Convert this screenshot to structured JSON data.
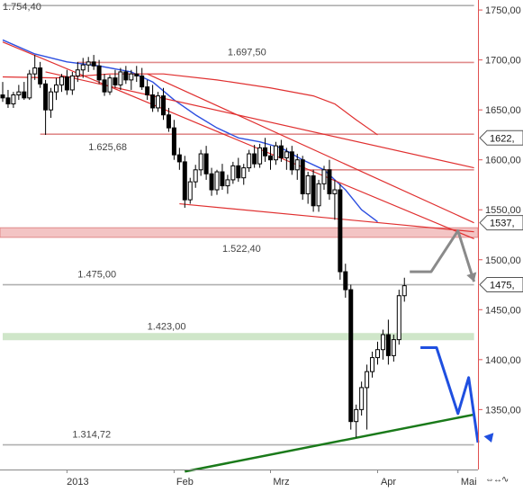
{
  "chart_data": {
    "type": "candlestick",
    "ylim": [
      1290,
      1760
    ],
    "y_ticks": [
      {
        "v": 1750,
        "label": "1750,00"
      },
      {
        "v": 1700,
        "label": "1700,00"
      },
      {
        "v": 1650,
        "label": "1650,00"
      },
      {
        "v": 1600,
        "label": "1600,00"
      },
      {
        "v": 1550,
        "label": "1550,00"
      },
      {
        "v": 1500,
        "label": "1500,00"
      },
      {
        "v": 1450,
        "label": "1450,00"
      },
      {
        "v": 1400,
        "label": "1400,00"
      },
      {
        "v": 1350,
        "label": "1350,00"
      }
    ],
    "x_labels": [
      {
        "i": 12,
        "label": "2013"
      },
      {
        "i": 32,
        "label": "Feb"
      },
      {
        "i": 50,
        "label": "Mrz"
      },
      {
        "i": 70,
        "label": "Apr"
      },
      {
        "i": 85,
        "label": "Mai"
      }
    ],
    "price_badges": [
      {
        "v": 1622,
        "label": "1622,"
      },
      {
        "v": 1537,
        "label": "1537,"
      },
      {
        "v": 1475,
        "label": "1475,"
      }
    ],
    "levels": [
      {
        "v": 1754.4,
        "label": "1.754,40",
        "color": "#b0b0b0",
        "from": 0,
        "to": 88,
        "label_i": 0
      },
      {
        "v": 1697.5,
        "label": "1.697,50",
        "color": "#e08a8a",
        "from": 14,
        "to": 88,
        "label_i": 42
      },
      {
        "v": 1625.68,
        "label": "1.625,68",
        "color": "#e08a8a",
        "from": 7,
        "to": 88,
        "label_i": 16
      },
      {
        "v": 1590,
        "label": "",
        "color": "#e08a8a",
        "from": 56,
        "to": 88,
        "label_i": 0
      },
      {
        "v": 1475.0,
        "label": "1.475,00",
        "color": "#b0b0b0",
        "from": 0,
        "to": 88,
        "label_i": 14
      },
      {
        "v": 1423.0,
        "label": "1.423,00",
        "color": "#cfe6c9",
        "from": 0,
        "to": 88,
        "label_i": 27
      },
      {
        "v": 1314.72,
        "label": "1.314,72",
        "color": "#b0b0b0",
        "from": 0,
        "to": 88,
        "label_i": 13
      }
    ],
    "zone": {
      "from": 1522.4,
      "to": 1532,
      "label": "1.522,40",
      "color": "#f3c4c4"
    },
    "candles": [
      [
        1665,
        1678,
        1658,
        1662
      ],
      [
        1662,
        1670,
        1652,
        1656
      ],
      [
        1656,
        1668,
        1652,
        1665
      ],
      [
        1665,
        1675,
        1660,
        1668
      ],
      [
        1668,
        1678,
        1660,
        1662
      ],
      [
        1662,
        1690,
        1660,
        1686
      ],
      [
        1686,
        1705,
        1680,
        1692
      ],
      [
        1692,
        1698,
        1672,
        1676
      ],
      [
        1676,
        1680,
        1625,
        1650
      ],
      [
        1650,
        1672,
        1642,
        1668
      ],
      [
        1668,
        1682,
        1660,
        1675
      ],
      [
        1675,
        1686,
        1668,
        1683
      ],
      [
        1683,
        1690,
        1665,
        1670
      ],
      [
        1670,
        1688,
        1665,
        1684
      ],
      [
        1684,
        1698,
        1678,
        1690
      ],
      [
        1690,
        1702,
        1682,
        1695
      ],
      [
        1695,
        1703,
        1688,
        1698
      ],
      [
        1698,
        1705,
        1690,
        1694
      ],
      [
        1694,
        1700,
        1676,
        1680
      ],
      [
        1680,
        1686,
        1664,
        1668
      ],
      [
        1668,
        1685,
        1665,
        1682
      ],
      [
        1682,
        1690,
        1672,
        1675
      ],
      [
        1675,
        1692,
        1670,
        1688
      ],
      [
        1688,
        1694,
        1676,
        1680
      ],
      [
        1680,
        1690,
        1670,
        1686
      ],
      [
        1686,
        1694,
        1678,
        1684
      ],
      [
        1684,
        1692,
        1670,
        1673
      ],
      [
        1673,
        1680,
        1660,
        1665
      ],
      [
        1665,
        1675,
        1648,
        1652
      ],
      [
        1652,
        1668,
        1648,
        1664
      ],
      [
        1664,
        1672,
        1640,
        1645
      ],
      [
        1645,
        1652,
        1628,
        1632
      ],
      [
        1632,
        1640,
        1600,
        1605
      ],
      [
        1605,
        1612,
        1590,
        1598
      ],
      [
        1598,
        1604,
        1552,
        1560
      ],
      [
        1560,
        1582,
        1556,
        1578
      ],
      [
        1578,
        1595,
        1572,
        1590
      ],
      [
        1590,
        1610,
        1584,
        1606
      ],
      [
        1606,
        1614,
        1580,
        1586
      ],
      [
        1586,
        1592,
        1564,
        1570
      ],
      [
        1570,
        1590,
        1565,
        1588
      ],
      [
        1588,
        1596,
        1570,
        1574
      ],
      [
        1574,
        1585,
        1566,
        1580
      ],
      [
        1580,
        1598,
        1576,
        1594
      ],
      [
        1594,
        1602,
        1578,
        1582
      ],
      [
        1582,
        1596,
        1575,
        1592
      ],
      [
        1592,
        1610,
        1588,
        1606
      ],
      [
        1606,
        1615,
        1592,
        1596
      ],
      [
        1596,
        1616,
        1592,
        1612
      ],
      [
        1612,
        1622,
        1598,
        1604
      ],
      [
        1604,
        1614,
        1590,
        1600
      ],
      [
        1600,
        1618,
        1595,
        1614
      ],
      [
        1614,
        1620,
        1598,
        1602
      ],
      [
        1602,
        1612,
        1590,
        1608
      ],
      [
        1608,
        1614,
        1585,
        1590
      ],
      [
        1590,
        1606,
        1580,
        1600
      ],
      [
        1600,
        1604,
        1560,
        1566
      ],
      [
        1566,
        1588,
        1556,
        1584
      ],
      [
        1584,
        1590,
        1548,
        1554
      ],
      [
        1554,
        1580,
        1548,
        1576
      ],
      [
        1576,
        1594,
        1570,
        1590
      ],
      [
        1590,
        1600,
        1560,
        1566
      ],
      [
        1566,
        1580,
        1540,
        1570
      ],
      [
        1570,
        1576,
        1480,
        1488
      ],
      [
        1488,
        1496,
        1462,
        1470
      ],
      [
        1470,
        1475,
        1330,
        1338
      ],
      [
        1338,
        1355,
        1322,
        1350
      ],
      [
        1350,
        1378,
        1344,
        1372
      ],
      [
        1372,
        1395,
        1330,
        1388
      ],
      [
        1388,
        1408,
        1382,
        1402
      ],
      [
        1402,
        1418,
        1395,
        1410
      ],
      [
        1410,
        1430,
        1400,
        1425
      ],
      [
        1425,
        1440,
        1395,
        1404
      ],
      [
        1404,
        1425,
        1398,
        1420
      ],
      [
        1420,
        1470,
        1415,
        1464
      ],
      [
        1464,
        1482,
        1458,
        1474
      ]
    ],
    "ma_blue": [
      [
        0,
        1720
      ],
      [
        6,
        1706
      ],
      [
        12,
        1698
      ],
      [
        18,
        1694
      ],
      [
        24,
        1688
      ],
      [
        28,
        1678
      ],
      [
        32,
        1660
      ],
      [
        36,
        1645
      ],
      [
        40,
        1632
      ],
      [
        44,
        1622
      ],
      [
        48,
        1618
      ],
      [
        52,
        1612
      ],
      [
        56,
        1600
      ],
      [
        60,
        1590
      ],
      [
        64,
        1570
      ],
      [
        67,
        1550
      ],
      [
        70,
        1538
      ]
    ],
    "ma_red": [
      [
        0,
        1683
      ],
      [
        10,
        1682
      ],
      [
        20,
        1686
      ],
      [
        30,
        1686
      ],
      [
        40,
        1680
      ],
      [
        50,
        1672
      ],
      [
        58,
        1664
      ],
      [
        62,
        1656
      ],
      [
        66,
        1640
      ],
      [
        70,
        1625
      ]
    ],
    "trendlines": [
      {
        "color": "#e03030",
        "width": 1.2,
        "pts": [
          [
            0,
            1718
          ],
          [
            88,
            1521
          ]
        ]
      },
      {
        "color": "#e03030",
        "width": 1.2,
        "pts": [
          [
            8,
            1688
          ],
          [
            88,
            1592
          ]
        ]
      },
      {
        "color": "#e03030",
        "width": 1.2,
        "pts": [
          [
            27,
            1686
          ],
          [
            88,
            1537
          ]
        ]
      },
      {
        "color": "#e03030",
        "width": 1.2,
        "pts": [
          [
            33,
            1556
          ],
          [
            88,
            1528
          ]
        ]
      },
      {
        "color": "#1a7a1a",
        "width": 2.5,
        "pts": [
          [
            34,
            1288
          ],
          [
            88,
            1345
          ]
        ]
      }
    ],
    "projections": [
      {
        "color": "#8a8a8a",
        "width": 3,
        "pts": [
          [
            76,
            1488
          ],
          [
            80,
            1488
          ],
          [
            85,
            1529
          ],
          [
            88,
            1478
          ]
        ],
        "arrow": true
      },
      {
        "color": "#1f4fe0",
        "width": 3,
        "pts": [
          [
            78,
            1412
          ],
          [
            81,
            1412
          ],
          [
            85,
            1346
          ],
          [
            87,
            1382
          ],
          [
            90,
            1317
          ]
        ],
        "arrow": true
      }
    ]
  }
}
